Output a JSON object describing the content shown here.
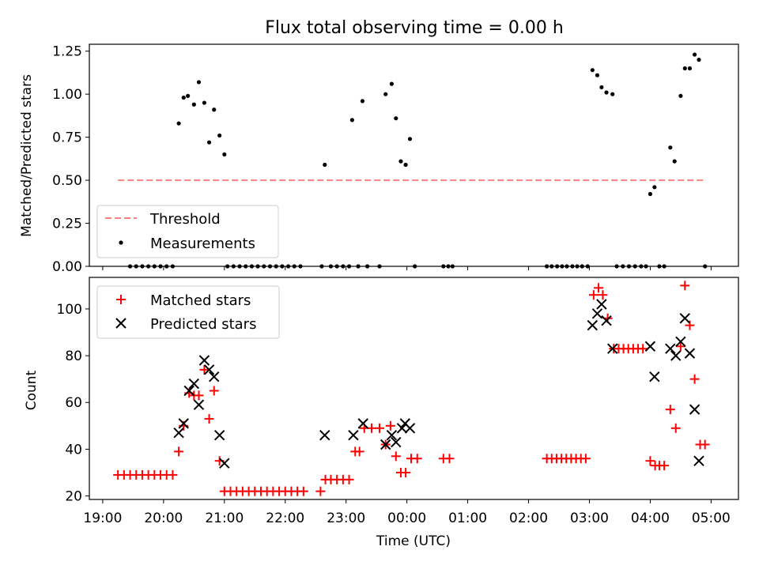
{
  "chart_data": [
    {
      "type": "scatter",
      "title": "Flux total observing time = 0.00 h",
      "xlabel": "",
      "ylabel": "Matched/Predicted stars",
      "ylim": [
        0,
        1.29
      ],
      "yticks": [
        "0.00",
        "0.25",
        "0.50",
        "0.75",
        "1.00",
        "1.25"
      ],
      "legend_position": "lower-left",
      "threshold": {
        "name": "Threshold",
        "value": 0.5,
        "x_start": 19.25,
        "x_end": 28.9,
        "color": "#ff8080"
      },
      "series": [
        {
          "name": "Measurements",
          "color": "#000000",
          "points": [
            [
              19.45,
              0
            ],
            [
              19.55,
              0
            ],
            [
              19.65,
              0
            ],
            [
              19.75,
              0
            ],
            [
              19.85,
              0
            ],
            [
              19.95,
              0
            ],
            [
              20.05,
              0
            ],
            [
              20.15,
              0
            ],
            [
              20.25,
              0.83
            ],
            [
              20.33,
              0.98
            ],
            [
              20.4,
              0.99
            ],
            [
              20.5,
              0.94
            ],
            [
              20.58,
              1.07
            ],
            [
              20.67,
              0.95
            ],
            [
              20.75,
              0.72
            ],
            [
              20.83,
              0.91
            ],
            [
              20.92,
              0.76
            ],
            [
              21.0,
              0.65
            ],
            [
              21.05,
              0
            ],
            [
              21.15,
              0
            ],
            [
              21.25,
              0
            ],
            [
              21.35,
              0
            ],
            [
              21.45,
              0
            ],
            [
              21.55,
              0
            ],
            [
              21.65,
              0
            ],
            [
              21.75,
              0
            ],
            [
              21.85,
              0
            ],
            [
              21.95,
              0
            ],
            [
              22.05,
              0
            ],
            [
              22.15,
              0
            ],
            [
              22.25,
              0
            ],
            [
              22.6,
              0
            ],
            [
              22.65,
              0.59
            ],
            [
              22.75,
              0
            ],
            [
              22.85,
              0
            ],
            [
              22.95,
              0
            ],
            [
              23.05,
              0
            ],
            [
              23.1,
              0.85
            ],
            [
              23.27,
              0.96
            ],
            [
              23.2,
              0
            ],
            [
              23.35,
              0
            ],
            [
              23.55,
              0
            ],
            [
              23.65,
              1.0
            ],
            [
              23.75,
              1.06
            ],
            [
              23.82,
              0.86
            ],
            [
              23.9,
              0.61
            ],
            [
              23.98,
              0.59
            ],
            [
              24.05,
              0.74
            ],
            [
              24.13,
              0
            ],
            [
              24.6,
              0
            ],
            [
              24.68,
              0
            ],
            [
              24.75,
              0
            ],
            [
              26.3,
              0
            ],
            [
              26.38,
              0
            ],
            [
              26.47,
              0
            ],
            [
              26.55,
              0
            ],
            [
              26.63,
              0
            ],
            [
              26.72,
              0
            ],
            [
              26.8,
              0
            ],
            [
              26.88,
              0
            ],
            [
              26.97,
              0
            ],
            [
              27.05,
              1.14
            ],
            [
              27.13,
              1.11
            ],
            [
              27.2,
              1.04
            ],
            [
              27.28,
              1.01
            ],
            [
              27.38,
              1.0
            ],
            [
              27.45,
              0
            ],
            [
              27.55,
              0
            ],
            [
              27.65,
              0
            ],
            [
              27.75,
              0
            ],
            [
              27.85,
              0
            ],
            [
              27.93,
              0
            ],
            [
              28.0,
              0.42
            ],
            [
              28.07,
              0.46
            ],
            [
              28.15,
              0
            ],
            [
              28.23,
              0
            ],
            [
              28.33,
              0.69
            ],
            [
              28.4,
              0.61
            ],
            [
              28.5,
              0.99
            ],
            [
              28.57,
              1.15
            ],
            [
              28.65,
              1.15
            ],
            [
              28.73,
              1.23
            ],
            [
              28.8,
              1.2
            ],
            [
              28.9,
              0
            ]
          ]
        }
      ]
    },
    {
      "type": "scatter",
      "title": "",
      "xlabel": "Time (UTC)",
      "ylabel": "Count",
      "ylim": [
        18.5,
        113.5
      ],
      "xlim": [
        18.78,
        29.45
      ],
      "yticks": [
        "20",
        "40",
        "60",
        "80",
        "100"
      ],
      "xtick_values": [
        19,
        20,
        21,
        22,
        23,
        24,
        25,
        26,
        27,
        28,
        29
      ],
      "xticks": [
        "19:00",
        "20:00",
        "21:00",
        "22:00",
        "23:00",
        "00:00",
        "01:00",
        "02:00",
        "03:00",
        "04:00",
        "05:00"
      ],
      "legend_position": "top-left",
      "series": [
        {
          "name": "Matched stars",
          "marker": "plus",
          "color": "#ff0000",
          "points": [
            [
              19.25,
              29
            ],
            [
              19.35,
              29
            ],
            [
              19.45,
              29
            ],
            [
              19.55,
              29
            ],
            [
              19.65,
              29
            ],
            [
              19.75,
              29
            ],
            [
              19.85,
              29
            ],
            [
              19.95,
              29
            ],
            [
              20.05,
              29
            ],
            [
              20.15,
              29
            ],
            [
              20.25,
              39
            ],
            [
              20.33,
              50
            ],
            [
              20.42,
              64
            ],
            [
              20.5,
              63
            ],
            [
              20.58,
              63
            ],
            [
              20.67,
              74
            ],
            [
              20.75,
              53
            ],
            [
              20.83,
              65
            ],
            [
              20.92,
              35
            ],
            [
              21.0,
              22
            ],
            [
              21.1,
              22
            ],
            [
              21.2,
              22
            ],
            [
              21.3,
              22
            ],
            [
              21.4,
              22
            ],
            [
              21.5,
              22
            ],
            [
              21.6,
              22
            ],
            [
              21.7,
              22
            ],
            [
              21.8,
              22
            ],
            [
              21.9,
              22
            ],
            [
              22.0,
              22
            ],
            [
              22.1,
              22
            ],
            [
              22.2,
              22
            ],
            [
              22.3,
              22
            ],
            [
              22.58,
              22
            ],
            [
              22.66,
              27
            ],
            [
              22.75,
              27
            ],
            [
              22.85,
              27
            ],
            [
              22.95,
              27
            ],
            [
              23.05,
              27
            ],
            [
              23.15,
              39
            ],
            [
              23.22,
              39
            ],
            [
              23.3,
              49
            ],
            [
              23.42,
              49
            ],
            [
              23.55,
              49
            ],
            [
              23.65,
              42
            ],
            [
              23.73,
              50
            ],
            [
              23.82,
              37
            ],
            [
              23.9,
              30
            ],
            [
              23.98,
              30
            ],
            [
              24.07,
              36
            ],
            [
              24.17,
              36
            ],
            [
              24.6,
              36
            ],
            [
              24.7,
              36
            ],
            [
              26.3,
              36
            ],
            [
              26.38,
              36
            ],
            [
              26.46,
              36
            ],
            [
              26.54,
              36
            ],
            [
              26.62,
              36
            ],
            [
              26.7,
              36
            ],
            [
              26.78,
              36
            ],
            [
              26.86,
              36
            ],
            [
              26.94,
              36
            ],
            [
              27.07,
              106
            ],
            [
              27.15,
              109
            ],
            [
              27.22,
              106
            ],
            [
              27.3,
              96
            ],
            [
              27.4,
              83
            ],
            [
              27.48,
              83
            ],
            [
              27.56,
              83
            ],
            [
              27.64,
              83
            ],
            [
              27.72,
              83
            ],
            [
              27.8,
              83
            ],
            [
              27.88,
              83
            ],
            [
              28.0,
              35
            ],
            [
              28.08,
              33
            ],
            [
              28.15,
              33
            ],
            [
              28.23,
              33
            ],
            [
              28.33,
              57
            ],
            [
              28.42,
              49
            ],
            [
              28.5,
              84
            ],
            [
              28.57,
              110
            ],
            [
              28.65,
              93
            ],
            [
              28.73,
              70
            ],
            [
              28.82,
              42
            ],
            [
              28.9,
              42
            ]
          ]
        },
        {
          "name": "Predicted stars",
          "marker": "x",
          "color": "#000000",
          "points": [
            [
              20.25,
              47
            ],
            [
              20.33,
              51
            ],
            [
              20.42,
              65
            ],
            [
              20.5,
              68
            ],
            [
              20.58,
              59
            ],
            [
              20.67,
              78
            ],
            [
              20.75,
              74
            ],
            [
              20.83,
              71
            ],
            [
              20.92,
              46
            ],
            [
              21.0,
              34
            ],
            [
              22.65,
              46
            ],
            [
              23.12,
              46
            ],
            [
              23.28,
              51
            ],
            [
              23.65,
              42
            ],
            [
              23.75,
              46
            ],
            [
              23.82,
              43
            ],
            [
              23.92,
              49
            ],
            [
              23.97,
              51
            ],
            [
              24.05,
              49
            ],
            [
              27.05,
              93
            ],
            [
              27.13,
              98
            ],
            [
              27.2,
              102
            ],
            [
              27.28,
              95
            ],
            [
              27.38,
              83
            ],
            [
              28.0,
              84
            ],
            [
              28.07,
              71
            ],
            [
              28.33,
              83
            ],
            [
              28.42,
              80
            ],
            [
              28.5,
              86
            ],
            [
              28.57,
              96
            ],
            [
              28.65,
              81
            ],
            [
              28.73,
              57
            ],
            [
              28.8,
              35
            ]
          ]
        }
      ]
    }
  ]
}
